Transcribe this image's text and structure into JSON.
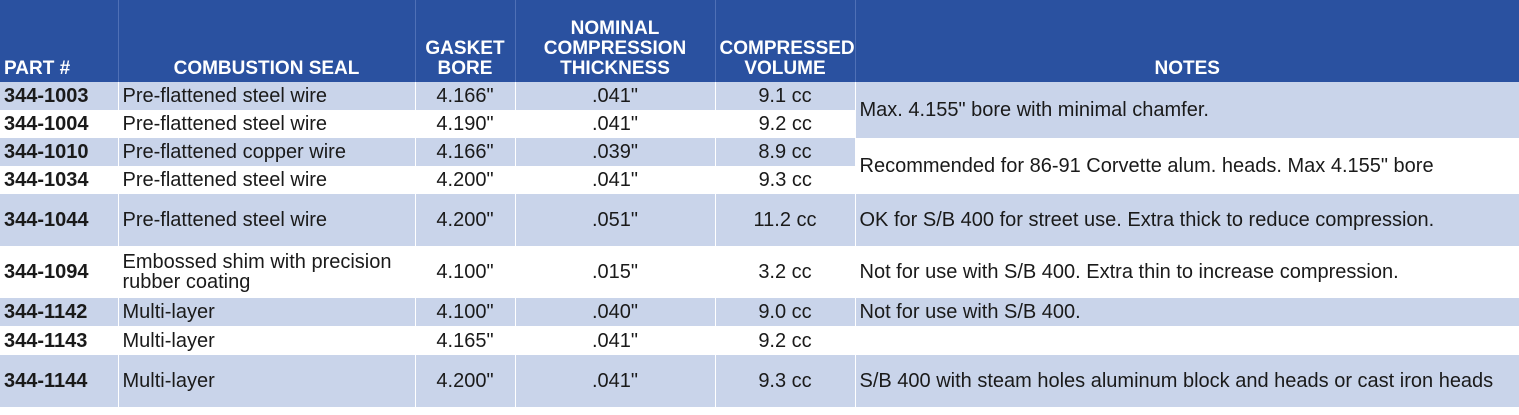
{
  "header": {
    "part": "PART #",
    "seal": "COMBUSTION SEAL",
    "bore_l1": "GASKET",
    "bore_l2": "BORE",
    "thick_l1": "NOMINAL",
    "thick_l2": "COMPRESSION",
    "thick_l3": "THICKNESS",
    "vol_l1": "COMPRESSED",
    "vol_l2": "VOLUME",
    "notes": "NOTES"
  },
  "rows": [
    {
      "part": "344-1003",
      "seal": "Pre-flattened steel wire",
      "bore": "4.166\"",
      "thickness": ".041\"",
      "volume": "9.1 cc"
    },
    {
      "part": "344-1004",
      "seal": "Pre-flattened steel wire",
      "bore": "4.190\"",
      "thickness": ".041\"",
      "volume": "9.2 cc"
    },
    {
      "part": "344-1010",
      "seal": "Pre-flattened copper wire",
      "bore": "4.166\"",
      "thickness": ".039\"",
      "volume": "8.9 cc"
    },
    {
      "part": "344-1034",
      "seal": "Pre-flattened steel wire",
      "bore": "4.200\"",
      "thickness": ".041\"",
      "volume": "9.3 cc"
    },
    {
      "part": "344-1044",
      "seal": "Pre-flattened steel wire",
      "bore": "4.200\"",
      "thickness": ".051\"",
      "volume": "11.2 cc"
    },
    {
      "part": "344-1094",
      "seal": "Embossed shim with precision rubber coating",
      "bore": "4.100\"",
      "thickness": ".015\"",
      "volume": "3.2 cc"
    },
    {
      "part": "344-1142",
      "seal": "Multi-layer",
      "bore": "4.100\"",
      "thickness": ".040\"",
      "volume": "9.0 cc"
    },
    {
      "part": "344-1143",
      "seal": "Multi-layer",
      "bore": "4.165\"",
      "thickness": ".041\"",
      "volume": "9.2 cc"
    },
    {
      "part": "344-1144",
      "seal": "Multi-layer",
      "bore": "4.200\"",
      "thickness": ".041\"",
      "volume": "9.3 cc"
    }
  ],
  "notes": {
    "n1": "Max. 4.155\" bore with minimal chamfer.",
    "n2": "Recommended for 86-91 Corvette alum. heads. Max 4.155\" bore",
    "n3": "OK for S/B 400 for street use. Extra thick to reduce compression.",
    "n4": "Not for use with S/B 400. Extra thin to increase compression.",
    "n5": "Not for use with S/B 400.",
    "n6": "",
    "n7": "S/B 400 with steam holes aluminum block and heads or cast iron heads"
  },
  "colors": {
    "header_bg": "#2a51a0",
    "row_shade": "#c9d4ea",
    "row_plain": "#ffffff"
  }
}
